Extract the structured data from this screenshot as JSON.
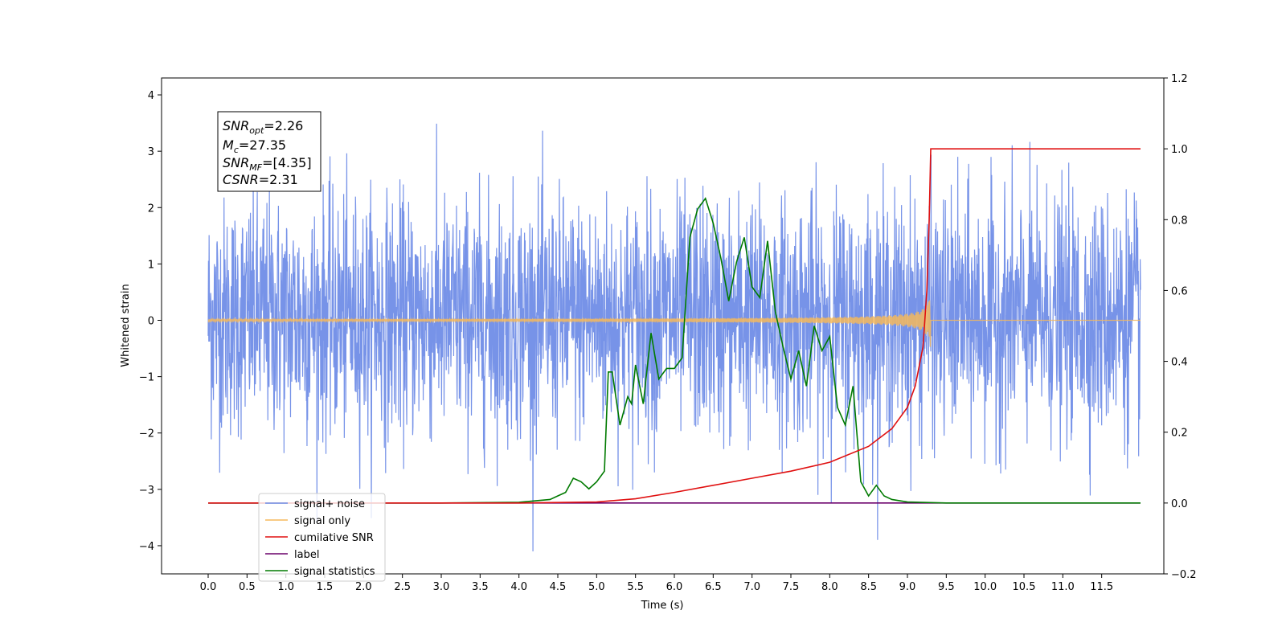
{
  "chart_data": {
    "type": "line",
    "xlabel": "Time (s)",
    "ylabel_left": "Whitened strain",
    "xlim": [
      -0.6,
      12.3
    ],
    "ylim_left": [
      -4.5,
      4.3
    ],
    "ylim_right": [
      -0.2,
      1.2
    ],
    "x_ticks": [
      "0.0",
      "0.5",
      "1.0",
      "1.5",
      "2.0",
      "2.5",
      "3.0",
      "3.5",
      "4.0",
      "4.5",
      "5.0",
      "5.5",
      "6.0",
      "6.5",
      "7.0",
      "7.5",
      "8.0",
      "8.5",
      "9.0",
      "9.5",
      "10.0",
      "10.5",
      "11.0",
      "11.5"
    ],
    "y_ticks_left": [
      "4",
      "3",
      "2",
      "1",
      "0",
      "−1",
      "−2",
      "−3",
      "−4"
    ],
    "y_ticks_right": [
      "1.2",
      "1.0",
      "0.8",
      "0.6",
      "0.4",
      "0.2",
      "0.0",
      "−0.2"
    ],
    "grid": false,
    "legend_position": "lower-left",
    "annotation": {
      "lines": [
        {
          "base": "SNR",
          "sub": "opt",
          "value": "=2.26"
        },
        {
          "base": "M",
          "sub": "c",
          "value": "=27.35"
        },
        {
          "base": "SNR",
          "sub": "MF",
          "value": "=[4.35]"
        },
        {
          "base": "CSNR",
          "sub": "",
          "value": "=2.31"
        }
      ]
    },
    "series": [
      {
        "name": "signal+ noise",
        "color": "#6b8ae6",
        "axis": "left",
        "x_range": [
          0.0,
          12.0
        ],
        "amplitude_range": [
          -4.1,
          3.9
        ]
      },
      {
        "name": "signal only",
        "color": "#f5b85c",
        "axis": "left",
        "x_range": [
          0.0,
          12.0
        ],
        "merger_time": 9.3,
        "peak_amplitude": 0.55
      },
      {
        "name": "cumilative SNR",
        "color": "#e01010",
        "axis": "right",
        "x": [
          0.0,
          4.0,
          5.0,
          5.5,
          6.0,
          6.5,
          7.0,
          7.5,
          8.0,
          8.5,
          8.8,
          9.0,
          9.1,
          9.2,
          9.25,
          9.28,
          9.3,
          9.35,
          12.0
        ],
        "y": [
          0.0,
          0.0,
          0.003,
          0.012,
          0.03,
          0.05,
          0.07,
          0.09,
          0.115,
          0.16,
          0.21,
          0.27,
          0.33,
          0.44,
          0.6,
          0.8,
          1.0,
          1.0,
          1.0
        ]
      },
      {
        "name": "label",
        "color": "#6a006a",
        "axis": "right",
        "x": [
          0.0,
          12.0
        ],
        "y": [
          0.0,
          0.0
        ]
      },
      {
        "name": "signal statistics",
        "color": "#007a00",
        "axis": "right",
        "x": [
          0.0,
          3.0,
          4.0,
          4.4,
          4.5,
          4.6,
          4.7,
          4.8,
          4.9,
          5.0,
          5.1,
          5.15,
          5.2,
          5.3,
          5.4,
          5.45,
          5.5,
          5.6,
          5.7,
          5.8,
          5.9,
          6.0,
          6.1,
          6.2,
          6.3,
          6.4,
          6.5,
          6.6,
          6.7,
          6.8,
          6.9,
          7.0,
          7.1,
          7.2,
          7.3,
          7.4,
          7.5,
          7.6,
          7.7,
          7.8,
          7.9,
          8.0,
          8.1,
          8.2,
          8.3,
          8.4,
          8.5,
          8.6,
          8.7,
          8.8,
          9.0,
          9.5,
          12.0
        ],
        "y": [
          0.0,
          0.0,
          0.002,
          0.01,
          0.02,
          0.03,
          0.07,
          0.06,
          0.04,
          0.06,
          0.09,
          0.37,
          0.37,
          0.22,
          0.3,
          0.28,
          0.39,
          0.28,
          0.48,
          0.35,
          0.38,
          0.38,
          0.41,
          0.75,
          0.83,
          0.86,
          0.79,
          0.69,
          0.57,
          0.68,
          0.75,
          0.61,
          0.58,
          0.74,
          0.54,
          0.44,
          0.35,
          0.43,
          0.33,
          0.5,
          0.43,
          0.47,
          0.27,
          0.22,
          0.33,
          0.06,
          0.02,
          0.05,
          0.02,
          0.01,
          0.003,
          0.0,
          0.0
        ]
      }
    ]
  }
}
